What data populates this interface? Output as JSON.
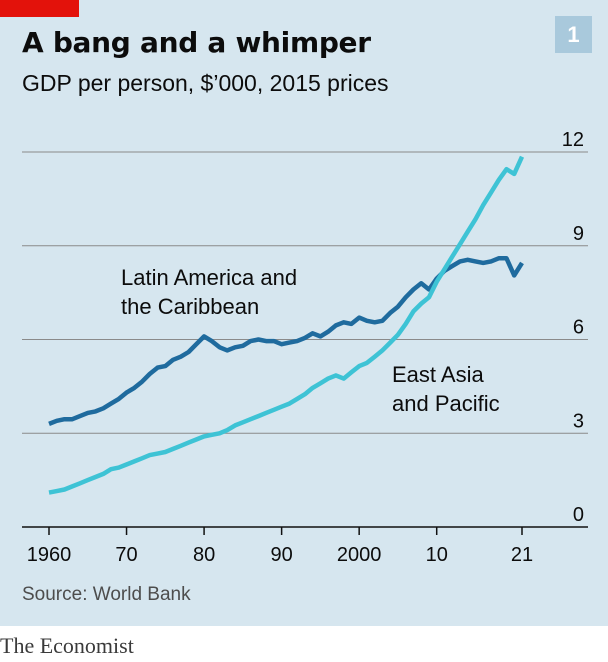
{
  "header": {
    "title": "A bang and a whimper",
    "subtitle": "GDP per person, $’000, 2015 prices",
    "chart_number": "1"
  },
  "footer": {
    "source": "Source: World Bank",
    "brand": "The Economist"
  },
  "colors": {
    "background": "#d6e6ef",
    "latin_america": "#1f6b9e",
    "east_asia": "#3ec3d5",
    "accent_red": "#e3120b",
    "gridline": "#8a8a8a"
  },
  "chart_data": {
    "type": "line",
    "title": "A bang and a whimper",
    "subtitle": "GDP per person, $’000, 2015 prices",
    "ylim": [
      0,
      12
    ],
    "yticks": [
      0,
      3,
      6,
      9,
      12
    ],
    "ytick_labels": [
      "0",
      "3",
      "6",
      "9",
      "12"
    ],
    "xlim": [
      1960,
      2021
    ],
    "xticks": [
      1960,
      1970,
      1980,
      1990,
      2000,
      2010,
      2021
    ],
    "xtick_labels": [
      "1960",
      "70",
      "80",
      "90",
      "2000",
      "10",
      "21"
    ],
    "grid": "horizontal",
    "legend": "none",
    "annotations": [
      {
        "series": "Latin America and the Caribbean",
        "lines": [
          "Latin America and",
          "the Caribbean"
        ]
      },
      {
        "series": "East Asia and Pacific",
        "lines": [
          "East Asia",
          "and Pacific"
        ]
      }
    ],
    "series": [
      {
        "name": "Latin America and the Caribbean",
        "x": [
          1960,
          1961,
          1962,
          1963,
          1964,
          1965,
          1966,
          1967,
          1968,
          1969,
          1970,
          1971,
          1972,
          1973,
          1974,
          1975,
          1976,
          1977,
          1978,
          1979,
          1980,
          1981,
          1982,
          1983,
          1984,
          1985,
          1986,
          1987,
          1988,
          1989,
          1990,
          1991,
          1992,
          1993,
          1994,
          1995,
          1996,
          1997,
          1998,
          1999,
          2000,
          2001,
          2002,
          2003,
          2004,
          2005,
          2006,
          2007,
          2008,
          2009,
          2010,
          2011,
          2012,
          2013,
          2014,
          2015,
          2016,
          2017,
          2018,
          2019,
          2020,
          2021
        ],
        "values": [
          3.3,
          3.4,
          3.45,
          3.45,
          3.55,
          3.65,
          3.7,
          3.8,
          3.95,
          4.1,
          4.3,
          4.45,
          4.65,
          4.9,
          5.1,
          5.15,
          5.35,
          5.45,
          5.6,
          5.85,
          6.1,
          5.95,
          5.75,
          5.65,
          5.75,
          5.8,
          5.95,
          6.0,
          5.95,
          5.95,
          5.85,
          5.9,
          5.95,
          6.05,
          6.2,
          6.1,
          6.25,
          6.45,
          6.55,
          6.5,
          6.7,
          6.6,
          6.55,
          6.6,
          6.85,
          7.05,
          7.35,
          7.6,
          7.8,
          7.6,
          7.95,
          8.2,
          8.35,
          8.5,
          8.55,
          8.5,
          8.45,
          8.5,
          8.6,
          8.6,
          8.05,
          8.45
        ]
      },
      {
        "name": "East Asia and Pacific",
        "x": [
          1960,
          1961,
          1962,
          1963,
          1964,
          1965,
          1966,
          1967,
          1968,
          1969,
          1970,
          1971,
          1972,
          1973,
          1974,
          1975,
          1976,
          1977,
          1978,
          1979,
          1980,
          1981,
          1982,
          1983,
          1984,
          1985,
          1986,
          1987,
          1988,
          1989,
          1990,
          1991,
          1992,
          1993,
          1994,
          1995,
          1996,
          1997,
          1998,
          1999,
          2000,
          2001,
          2002,
          2003,
          2004,
          2005,
          2006,
          2007,
          2008,
          2009,
          2010,
          2011,
          2012,
          2013,
          2014,
          2015,
          2016,
          2017,
          2018,
          2019,
          2020,
          2021
        ],
        "values": [
          1.1,
          1.15,
          1.2,
          1.3,
          1.4,
          1.5,
          1.6,
          1.7,
          1.85,
          1.9,
          2.0,
          2.1,
          2.2,
          2.3,
          2.35,
          2.4,
          2.5,
          2.6,
          2.7,
          2.8,
          2.9,
          2.95,
          3.0,
          3.1,
          3.25,
          3.35,
          3.45,
          3.55,
          3.65,
          3.75,
          3.85,
          3.95,
          4.1,
          4.25,
          4.45,
          4.6,
          4.75,
          4.85,
          4.75,
          4.95,
          5.15,
          5.25,
          5.45,
          5.65,
          5.9,
          6.15,
          6.5,
          6.9,
          7.15,
          7.35,
          7.85,
          8.25,
          8.65,
          9.05,
          9.45,
          9.85,
          10.3,
          10.7,
          11.1,
          11.45,
          11.3,
          11.85
        ]
      }
    ]
  }
}
